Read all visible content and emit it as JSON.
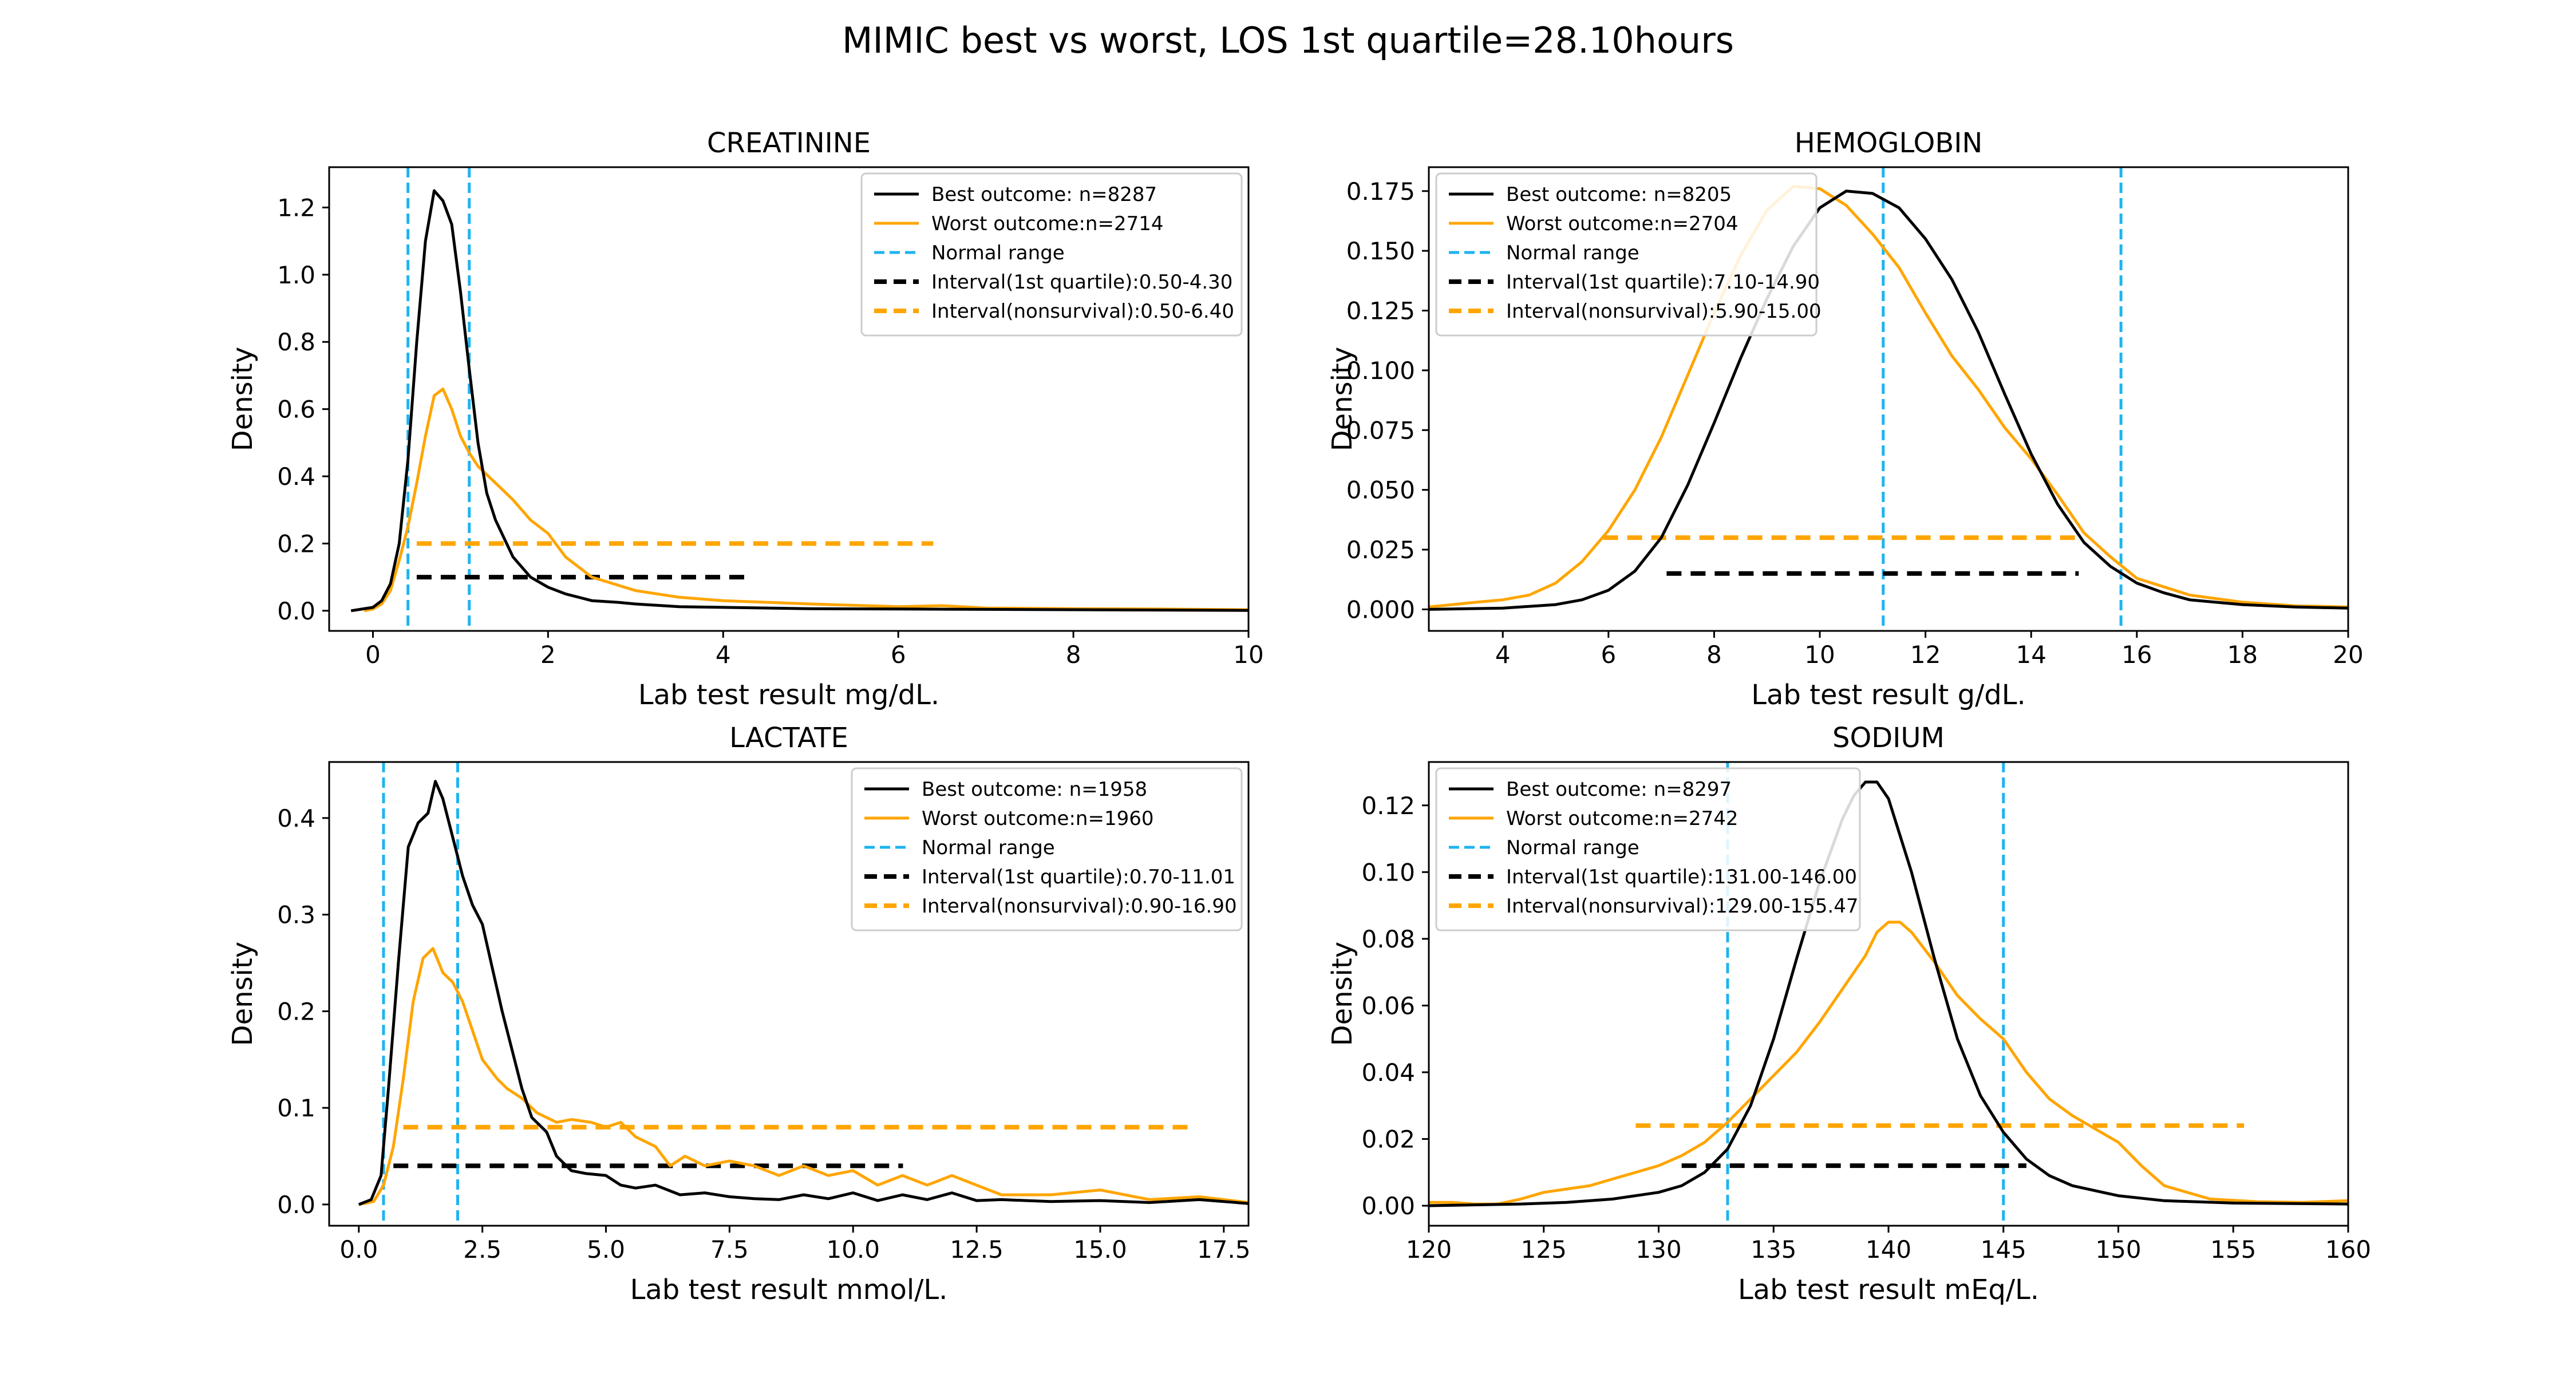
{
  "figure": {
    "suptitle": "MIMIC best vs worst, LOS 1st quartile=28.10hours"
  },
  "colors": {
    "best": "#000000",
    "worst": "#FFA500",
    "normal": "#1EB4F0"
  },
  "chart_data": [
    {
      "type": "line",
      "title": "CREATININE",
      "xlabel": "Lab test result mg/dL.",
      "ylabel": "Density",
      "xlim": [
        -0.5,
        10
      ],
      "ylim": [
        -0.06,
        1.32
      ],
      "xticks": [
        0,
        2,
        4,
        6,
        8,
        10
      ],
      "xtick_labels": [
        "0",
        "2",
        "4",
        "6",
        "8",
        "10"
      ],
      "yticks": [
        0,
        0.2,
        0.4,
        0.6,
        0.8,
        1.0,
        1.2
      ],
      "ytick_labels": [
        "0.0",
        "0.2",
        "0.4",
        "0.6",
        "0.8",
        "1.0",
        "1.2"
      ],
      "legend_position": "upper right",
      "legend": [
        "Best outcome: n=8287",
        "Worst outcome:n=2714",
        "Normal range",
        "Interval(1st quartile):0.50-4.30",
        "Interval(nonsurvival):0.50-6.40"
      ],
      "normal_range": [
        0.4,
        1.1
      ],
      "intervals": {
        "best": {
          "range": [
            0.5,
            4.3
          ],
          "y": 0.1
        },
        "worst": {
          "range": [
            0.5,
            6.4
          ],
          "y": 0.2
        }
      },
      "series": [
        {
          "name": "Best outcome: n=8287",
          "x": [
            -0.25,
            0,
            0.1,
            0.2,
            0.3,
            0.4,
            0.5,
            0.6,
            0.7,
            0.8,
            0.9,
            1.0,
            1.1,
            1.2,
            1.3,
            1.4,
            1.6,
            1.8,
            2.0,
            2.2,
            2.5,
            2.8,
            3.0,
            3.5,
            4.0,
            5.0,
            6.0,
            7.0,
            8.0,
            9.0,
            10.0
          ],
          "y": [
            0.0,
            0.01,
            0.03,
            0.08,
            0.2,
            0.45,
            0.8,
            1.1,
            1.25,
            1.22,
            1.15,
            0.95,
            0.72,
            0.5,
            0.35,
            0.27,
            0.16,
            0.1,
            0.07,
            0.05,
            0.03,
            0.025,
            0.02,
            0.012,
            0.01,
            0.006,
            0.005,
            0.004,
            0.003,
            0.002,
            0.001
          ]
        },
        {
          "name": "Worst outcome:n=2714",
          "x": [
            -0.1,
            0,
            0.1,
            0.2,
            0.3,
            0.4,
            0.5,
            0.6,
            0.7,
            0.8,
            0.9,
            1.0,
            1.1,
            1.2,
            1.4,
            1.6,
            1.8,
            2.0,
            2.2,
            2.5,
            3.0,
            3.5,
            4.0,
            5.0,
            6.0,
            6.5,
            7.0,
            8.0,
            9.0,
            10.0
          ],
          "y": [
            0.0,
            0.005,
            0.02,
            0.06,
            0.15,
            0.25,
            0.38,
            0.52,
            0.64,
            0.66,
            0.6,
            0.52,
            0.47,
            0.43,
            0.38,
            0.33,
            0.27,
            0.23,
            0.16,
            0.1,
            0.06,
            0.04,
            0.03,
            0.02,
            0.012,
            0.015,
            0.008,
            0.006,
            0.005,
            0.003
          ]
        }
      ]
    },
    {
      "type": "line",
      "title": "HEMOGLOBIN",
      "xlabel": "Lab test result g/dL.",
      "ylabel": "Density",
      "xlim": [
        2.6,
        20
      ],
      "ylim": [
        -0.009,
        0.185
      ],
      "xticks": [
        4,
        6,
        8,
        10,
        12,
        14,
        16,
        18,
        20
      ],
      "xtick_labels": [
        "4",
        "6",
        "8",
        "10",
        "12",
        "14",
        "16",
        "18",
        "20"
      ],
      "yticks": [
        0,
        0.025,
        0.05,
        0.075,
        0.1,
        0.125,
        0.15,
        0.175
      ],
      "ytick_labels": [
        "0.000",
        "0.025",
        "0.050",
        "0.075",
        "0.100",
        "0.125",
        "0.150",
        "0.175"
      ],
      "legend_position": "upper left",
      "legend": [
        "Best outcome: n=8205",
        "Worst outcome:n=2704",
        "Normal range",
        "Interval(1st quartile):7.10-14.90",
        "Interval(nonsurvival):5.90-15.00"
      ],
      "normal_range": [
        11.2,
        15.7
      ],
      "intervals": {
        "best": {
          "range": [
            7.1,
            14.9
          ],
          "y": 0.015
        },
        "worst": {
          "range": [
            5.9,
            15.0
          ],
          "y": 0.03
        }
      },
      "series": [
        {
          "name": "Best outcome: n=8205",
          "x": [
            2.6,
            4,
            5,
            5.5,
            6,
            6.5,
            7,
            7.5,
            8,
            8.5,
            9,
            9.5,
            10,
            10.5,
            11,
            11.5,
            12,
            12.5,
            13,
            13.5,
            14,
            14.5,
            15,
            15.5,
            16,
            16.5,
            17,
            18,
            19,
            20
          ],
          "y": [
            0.0,
            0.0005,
            0.002,
            0.004,
            0.008,
            0.016,
            0.03,
            0.052,
            0.078,
            0.105,
            0.13,
            0.152,
            0.168,
            0.175,
            0.174,
            0.168,
            0.155,
            0.138,
            0.116,
            0.09,
            0.065,
            0.044,
            0.028,
            0.018,
            0.011,
            0.007,
            0.004,
            0.002,
            0.001,
            0.0005
          ]
        },
        {
          "name": "Worst outcome:n=2704",
          "x": [
            2.6,
            3.5,
            4,
            4.5,
            5,
            5.5,
            6,
            6.5,
            7,
            7.5,
            8,
            8.5,
            9,
            9.5,
            10,
            10.5,
            11,
            11.5,
            12,
            12.5,
            13,
            13.5,
            14,
            14.5,
            15,
            15.5,
            16,
            17,
            18,
            19,
            20
          ],
          "y": [
            0.001,
            0.003,
            0.004,
            0.006,
            0.011,
            0.02,
            0.033,
            0.05,
            0.072,
            0.098,
            0.124,
            0.148,
            0.167,
            0.177,
            0.176,
            0.169,
            0.157,
            0.143,
            0.124,
            0.106,
            0.092,
            0.076,
            0.063,
            0.048,
            0.032,
            0.022,
            0.013,
            0.006,
            0.003,
            0.0015,
            0.001
          ]
        }
      ]
    },
    {
      "type": "line",
      "title": "LACTATE",
      "xlabel": "Lab test result mmol/L.",
      "ylabel": "Density",
      "xlim": [
        -0.6,
        18
      ],
      "ylim": [
        -0.022,
        0.458
      ],
      "xticks": [
        0,
        2.5,
        5,
        7.5,
        10,
        12.5,
        15,
        17.5
      ],
      "xtick_labels": [
        "0.0",
        "2.5",
        "5.0",
        "7.5",
        "10.0",
        "12.5",
        "15.0",
        "17.5"
      ],
      "yticks": [
        0,
        0.1,
        0.2,
        0.3,
        0.4
      ],
      "ytick_labels": [
        "0.0",
        "0.1",
        "0.2",
        "0.3",
        "0.4"
      ],
      "legend_position": "upper right",
      "legend": [
        "Best outcome: n=1958",
        "Worst outcome:n=1960",
        "Normal range",
        "Interval(1st quartile):0.70-11.01",
        "Interval(nonsurvival):0.90-16.90"
      ],
      "normal_range": [
        0.5,
        2.0
      ],
      "intervals": {
        "best": {
          "range": [
            0.7,
            11.01
          ],
          "y": 0.04
        },
        "worst": {
          "range": [
            0.9,
            16.9
          ],
          "y": 0.08
        }
      },
      "series": [
        {
          "name": "Best outcome: n=1958",
          "x": [
            0,
            0.25,
            0.45,
            0.6,
            0.8,
            1.0,
            1.2,
            1.4,
            1.55,
            1.7,
            1.9,
            2.1,
            2.3,
            2.5,
            2.7,
            2.9,
            3.1,
            3.3,
            3.5,
            3.8,
            4.0,
            4.3,
            4.6,
            5.0,
            5.3,
            5.6,
            6.0,
            6.5,
            7.0,
            7.5,
            8.0,
            8.5,
            9.0,
            9.5,
            10.0,
            10.5,
            11.0,
            11.5,
            12.0,
            12.5,
            13.0,
            14.0,
            15.0,
            16.0,
            17.0,
            18.0
          ],
          "y": [
            0.0,
            0.005,
            0.03,
            0.12,
            0.25,
            0.37,
            0.395,
            0.405,
            0.438,
            0.42,
            0.38,
            0.34,
            0.31,
            0.29,
            0.245,
            0.2,
            0.16,
            0.12,
            0.09,
            0.075,
            0.05,
            0.035,
            0.032,
            0.03,
            0.02,
            0.017,
            0.02,
            0.01,
            0.012,
            0.008,
            0.006,
            0.005,
            0.01,
            0.006,
            0.012,
            0.004,
            0.01,
            0.005,
            0.012,
            0.004,
            0.005,
            0.003,
            0.004,
            0.002,
            0.005,
            0.001
          ]
        },
        {
          "name": "Worst outcome:n=1960",
          "x": [
            0,
            0.3,
            0.5,
            0.7,
            0.9,
            1.1,
            1.3,
            1.5,
            1.7,
            1.9,
            2.1,
            2.3,
            2.5,
            2.8,
            3.0,
            3.3,
            3.6,
            4.0,
            4.3,
            4.7,
            5.0,
            5.3,
            5.6,
            6.0,
            6.3,
            6.6,
            7.0,
            7.5,
            8.0,
            8.5,
            9.0,
            9.5,
            10.0,
            10.5,
            11.0,
            11.5,
            12.0,
            13.0,
            14.0,
            15.0,
            16.0,
            17.0,
            18.0
          ],
          "y": [
            0.0,
            0.003,
            0.02,
            0.06,
            0.13,
            0.21,
            0.255,
            0.265,
            0.24,
            0.23,
            0.21,
            0.18,
            0.15,
            0.13,
            0.12,
            0.11,
            0.095,
            0.085,
            0.088,
            0.085,
            0.08,
            0.085,
            0.07,
            0.06,
            0.04,
            0.05,
            0.04,
            0.045,
            0.04,
            0.03,
            0.04,
            0.03,
            0.035,
            0.02,
            0.03,
            0.02,
            0.03,
            0.01,
            0.01,
            0.015,
            0.005,
            0.008,
            0.002
          ]
        }
      ]
    },
    {
      "type": "line",
      "title": "SODIUM",
      "xlabel": "Lab test result mEq/L.",
      "ylabel": "Density",
      "xlim": [
        120,
        160
      ],
      "ylim": [
        -0.006,
        0.133
      ],
      "xticks": [
        120,
        125,
        130,
        135,
        140,
        145,
        150,
        155,
        160
      ],
      "xtick_labels": [
        "120",
        "125",
        "130",
        "135",
        "140",
        "145",
        "150",
        "155",
        "160"
      ],
      "yticks": [
        0,
        0.02,
        0.04,
        0.06,
        0.08,
        0.1,
        0.12
      ],
      "ytick_labels": [
        "0.00",
        "0.02",
        "0.04",
        "0.06",
        "0.08",
        "0.10",
        "0.12"
      ],
      "legend_position": "upper left",
      "legend": [
        "Best outcome: n=8297",
        "Worst outcome:n=2742",
        "Normal range",
        "Interval(1st quartile):131.00-146.00",
        "Interval(nonsurvival):129.00-155.47"
      ],
      "normal_range": [
        133,
        145
      ],
      "intervals": {
        "best": {
          "range": [
            131.0,
            146.0
          ],
          "y": 0.012
        },
        "worst": {
          "range": [
            129.0,
            155.47
          ],
          "y": 0.024
        }
      },
      "series": [
        {
          "name": "Best outcome: n=8297",
          "x": [
            120,
            124,
            126,
            128,
            130,
            131,
            132,
            133,
            134,
            135,
            136,
            137,
            138,
            138.5,
            139,
            139.5,
            140,
            141,
            142,
            143,
            144,
            145,
            146,
            147,
            148,
            150,
            152,
            155,
            160
          ],
          "y": [
            0.0,
            0.0005,
            0.001,
            0.002,
            0.004,
            0.006,
            0.01,
            0.017,
            0.03,
            0.05,
            0.074,
            0.097,
            0.116,
            0.123,
            0.127,
            0.127,
            0.122,
            0.1,
            0.074,
            0.05,
            0.033,
            0.022,
            0.014,
            0.009,
            0.006,
            0.003,
            0.0015,
            0.0008,
            0.0005
          ]
        },
        {
          "name": "Worst outcome:n=2742",
          "x": [
            120,
            121,
            122,
            123,
            124,
            125,
            126,
            127,
            128,
            129,
            130,
            131,
            132,
            133,
            134,
            135,
            136,
            137,
            138,
            139,
            139.5,
            140,
            140.5,
            141,
            142,
            143,
            144,
            145,
            146,
            147,
            148,
            149,
            150,
            151,
            152,
            154,
            156,
            158,
            160
          ],
          "y": [
            0.001,
            0.001,
            0.0005,
            0.0005,
            0.002,
            0.004,
            0.005,
            0.006,
            0.008,
            0.01,
            0.012,
            0.015,
            0.019,
            0.025,
            0.032,
            0.039,
            0.046,
            0.055,
            0.065,
            0.075,
            0.082,
            0.085,
            0.085,
            0.082,
            0.073,
            0.063,
            0.056,
            0.05,
            0.04,
            0.032,
            0.027,
            0.023,
            0.019,
            0.012,
            0.006,
            0.002,
            0.0012,
            0.001,
            0.0015
          ]
        }
      ]
    }
  ]
}
